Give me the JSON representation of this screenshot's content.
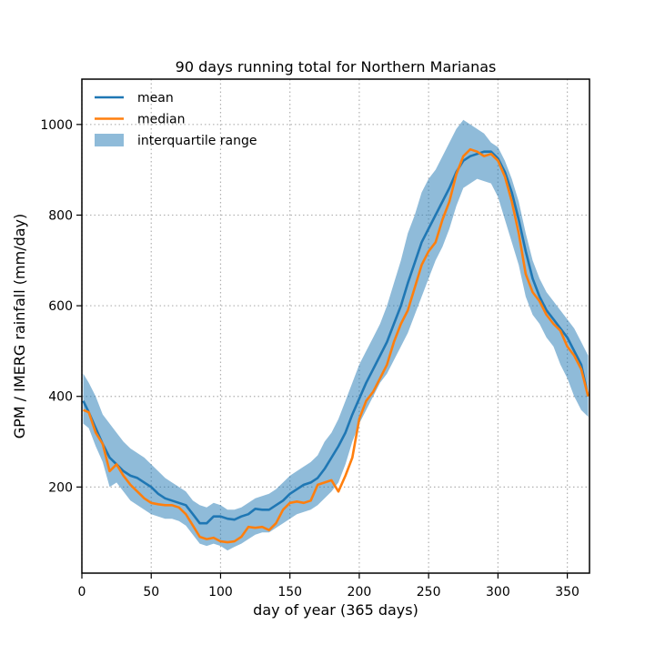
{
  "chart_data": {
    "type": "line",
    "title": "90 days running total for Northern Marianas",
    "xlabel": "day of year (365 days)",
    "ylabel": "GPM / IMERG rainfall (mm/day)",
    "xlim": [
      0,
      366
    ],
    "ylim": [
      10,
      1100
    ],
    "xticks": [
      0,
      50,
      100,
      150,
      200,
      250,
      300,
      350
    ],
    "yticks": [
      200,
      400,
      600,
      800,
      1000
    ],
    "grid": true,
    "grid_style": "dotted",
    "legend_position": "top-left",
    "x": [
      1,
      5,
      10,
      15,
      20,
      25,
      30,
      35,
      40,
      45,
      50,
      55,
      60,
      65,
      70,
      75,
      80,
      85,
      90,
      95,
      100,
      105,
      110,
      115,
      120,
      125,
      130,
      135,
      140,
      145,
      150,
      155,
      160,
      165,
      170,
      175,
      180,
      185,
      190,
      195,
      200,
      205,
      210,
      215,
      220,
      225,
      230,
      235,
      240,
      245,
      250,
      255,
      260,
      265,
      270,
      275,
      280,
      285,
      290,
      295,
      300,
      305,
      310,
      315,
      320,
      325,
      330,
      335,
      340,
      345,
      350,
      355,
      360,
      365
    ],
    "series": [
      {
        "name": "mean",
        "color": "#1f77b4",
        "kind": "line",
        "values": [
          390,
          365,
          330,
          295,
          265,
          250,
          235,
          225,
          220,
          210,
          200,
          185,
          175,
          170,
          165,
          160,
          140,
          120,
          120,
          135,
          135,
          130,
          128,
          135,
          140,
          152,
          150,
          150,
          160,
          170,
          185,
          195,
          205,
          210,
          220,
          240,
          265,
          290,
          320,
          360,
          395,
          430,
          460,
          490,
          520,
          560,
          600,
          650,
          695,
          740,
          770,
          800,
          830,
          860,
          895,
          920,
          930,
          935,
          940,
          940,
          925,
          895,
          850,
          790,
          720,
          660,
          620,
          590,
          570,
          550,
          530,
          500,
          470,
          400
        ]
      },
      {
        "name": "median",
        "color": "#ff7f0e",
        "kind": "line",
        "values": [
          370,
          365,
          320,
          295,
          235,
          250,
          225,
          205,
          190,
          175,
          165,
          162,
          160,
          160,
          155,
          140,
          115,
          90,
          85,
          88,
          80,
          78,
          80,
          90,
          112,
          110,
          112,
          105,
          120,
          150,
          165,
          168,
          165,
          170,
          205,
          210,
          215,
          190,
          225,
          265,
          350,
          390,
          410,
          440,
          470,
          520,
          560,
          590,
          640,
          690,
          720,
          740,
          790,
          830,
          890,
          930,
          945,
          940,
          930,
          935,
          920,
          885,
          830,
          760,
          670,
          630,
          610,
          580,
          560,
          545,
          510,
          490,
          460,
          400
        ]
      },
      {
        "name": "interquartile range",
        "color": "#1f77b4",
        "kind": "band",
        "opacity": 0.5,
        "lower": [
          340,
          330,
          290,
          255,
          200,
          210,
          190,
          170,
          160,
          150,
          140,
          135,
          130,
          130,
          125,
          115,
          95,
          75,
          70,
          75,
          70,
          60,
          68,
          75,
          85,
          95,
          100,
          100,
          110,
          120,
          130,
          140,
          145,
          150,
          160,
          175,
          190,
          210,
          250,
          300,
          340,
          370,
          400,
          430,
          450,
          480,
          510,
          540,
          580,
          620,
          660,
          700,
          730,
          770,
          820,
          860,
          870,
          880,
          875,
          870,
          840,
          790,
          740,
          690,
          620,
          580,
          560,
          530,
          510,
          470,
          440,
          400,
          370,
          355
        ],
        "upper": [
          450,
          430,
          400,
          360,
          340,
          320,
          300,
          285,
          275,
          265,
          250,
          235,
          220,
          210,
          200,
          190,
          170,
          160,
          155,
          165,
          160,
          150,
          150,
          155,
          165,
          175,
          180,
          185,
          195,
          210,
          225,
          235,
          245,
          255,
          270,
          300,
          320,
          350,
          390,
          430,
          470,
          500,
          530,
          560,
          600,
          650,
          700,
          760,
          800,
          850,
          880,
          900,
          930,
          960,
          990,
          1010,
          1000,
          990,
          980,
          960,
          950,
          920,
          880,
          830,
          760,
          700,
          660,
          630,
          610,
          590,
          570,
          550,
          520,
          490
        ]
      }
    ]
  }
}
